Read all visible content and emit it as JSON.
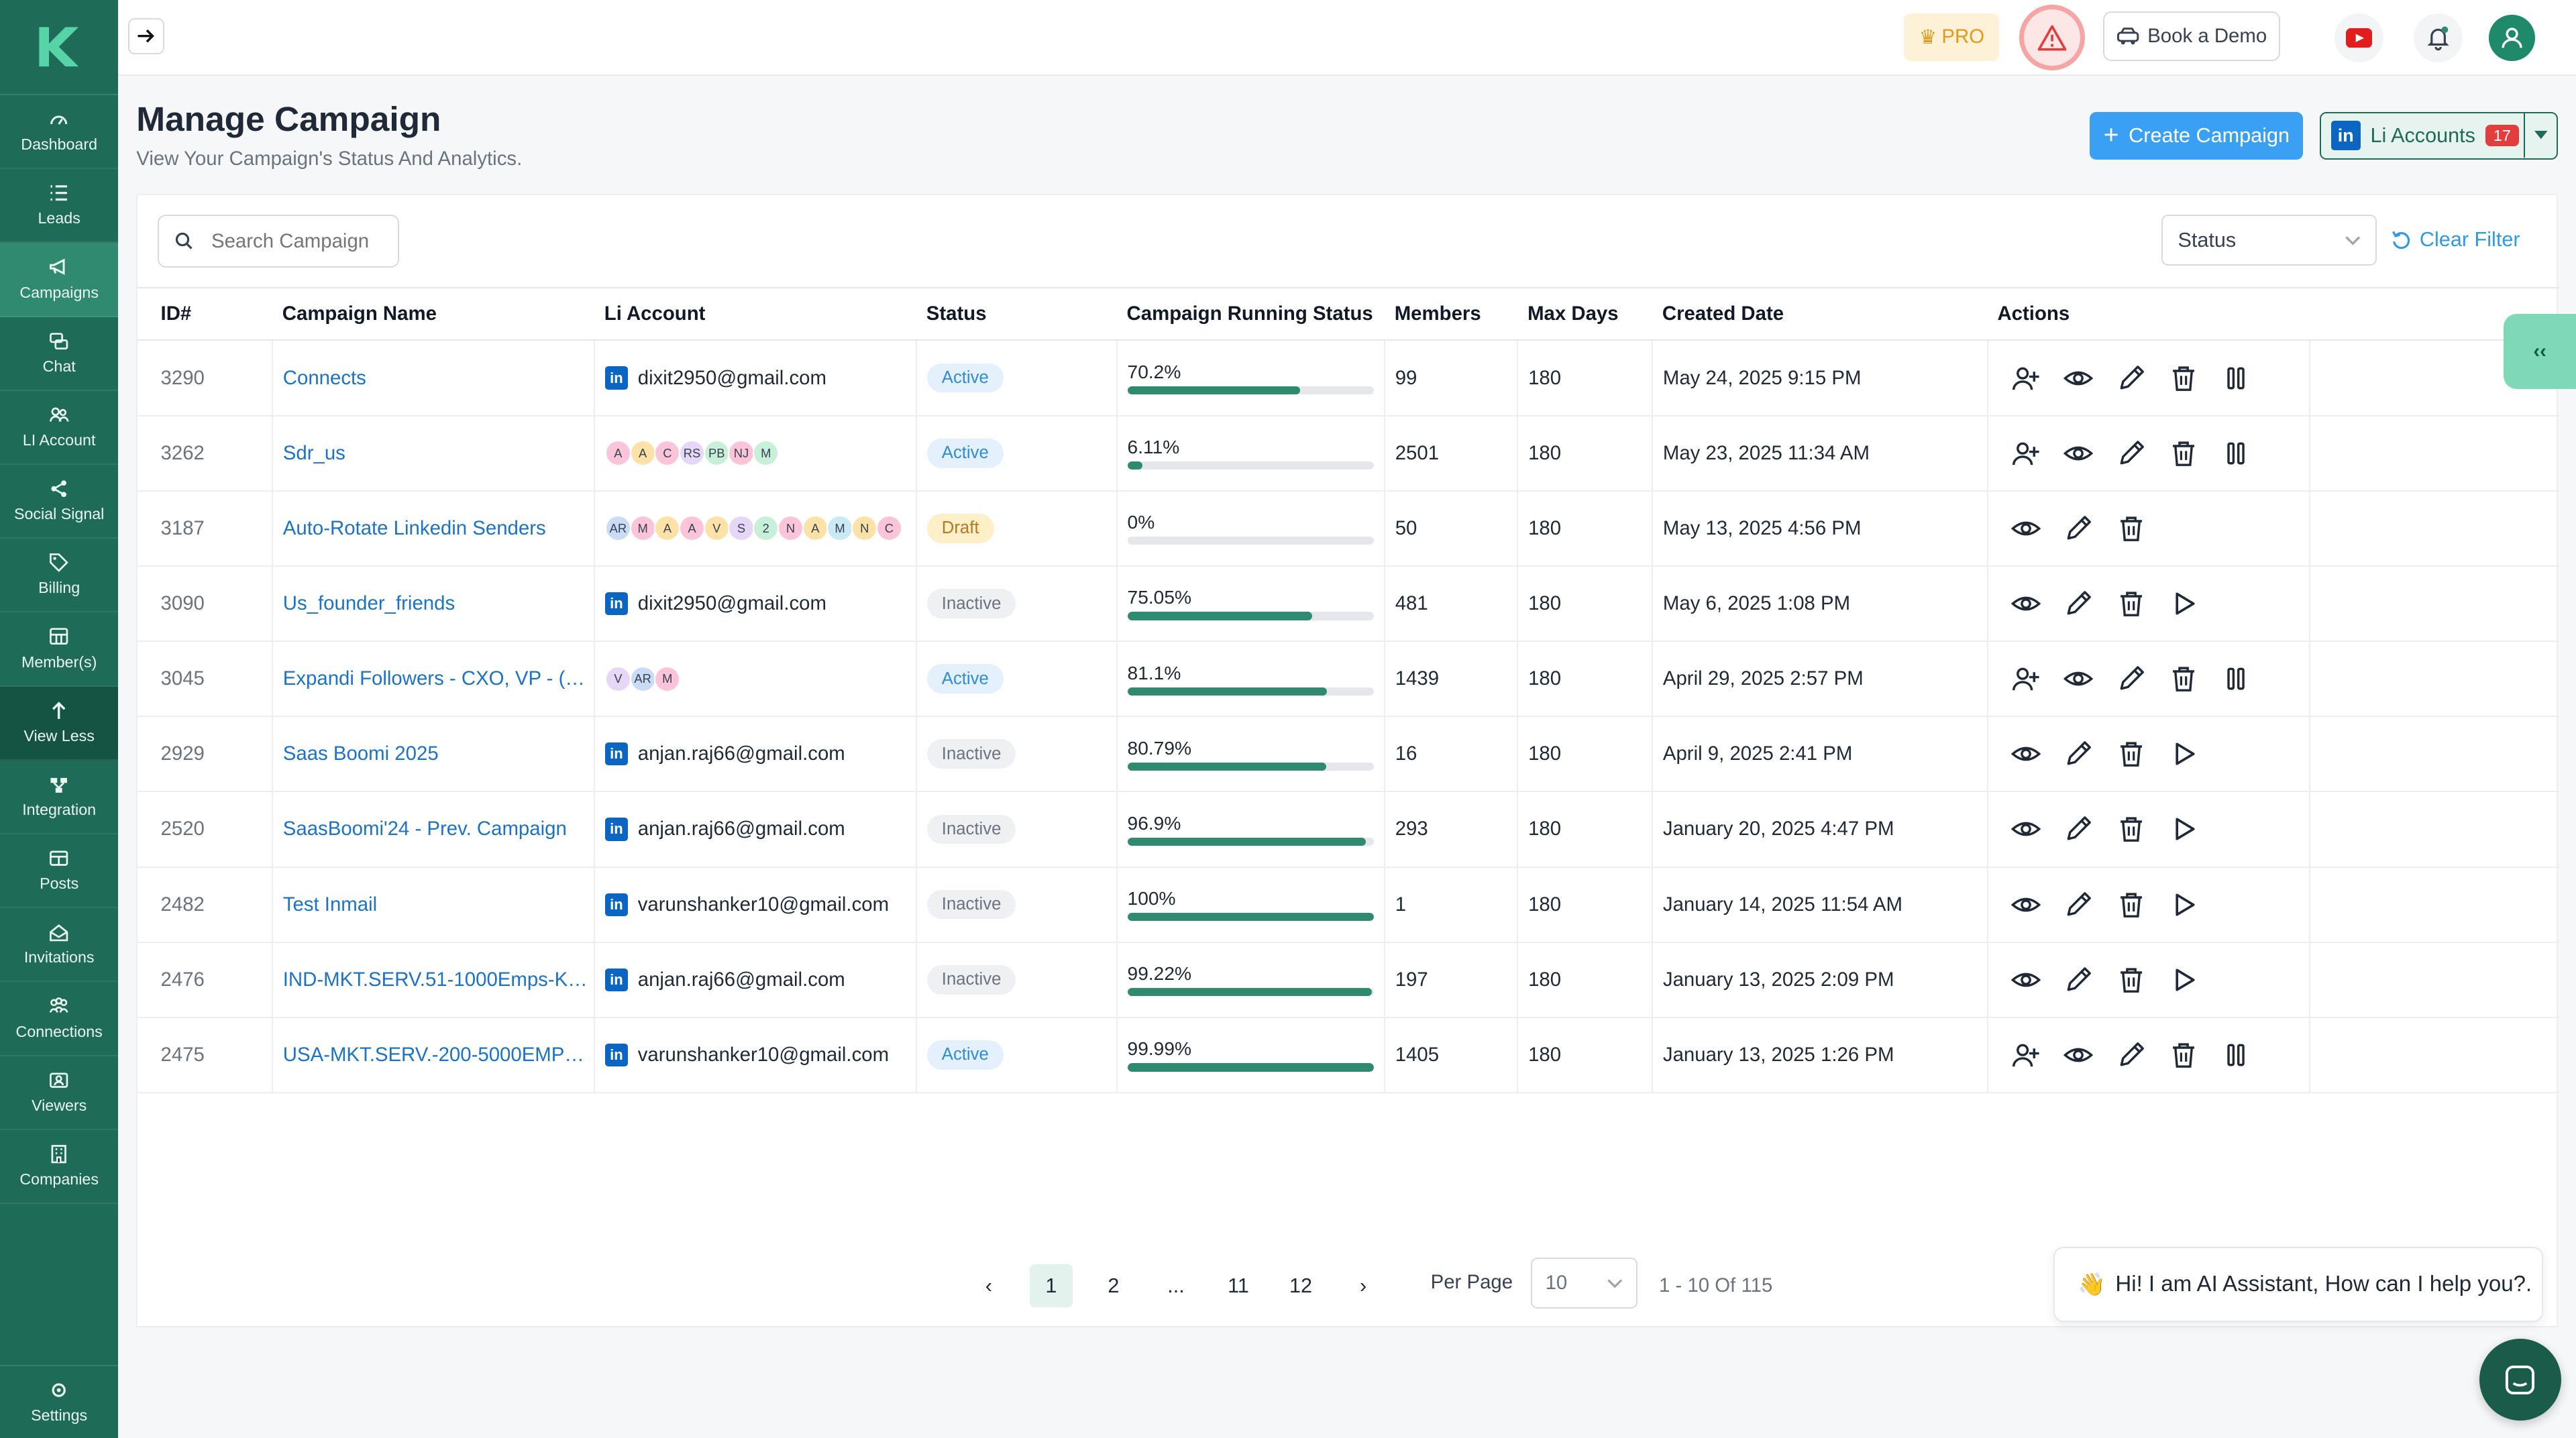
{
  "colors": {
    "sidebar_bg": "#1e6b57",
    "accent_blue": "#3aa0f3",
    "progress_green": "#2e8b70",
    "link_blue": "#1a73c8"
  },
  "sidebar": {
    "items": [
      {
        "label": "Dashboard",
        "icon": "gauge-icon"
      },
      {
        "label": "Leads",
        "icon": "list-icon"
      },
      {
        "label": "Campaigns",
        "icon": "megaphone-icon"
      },
      {
        "label": "Chat",
        "icon": "chat-icon"
      },
      {
        "label": "LI Account",
        "icon": "accounts-icon"
      },
      {
        "label": "Social Signal",
        "icon": "share-icon"
      },
      {
        "label": "Billing",
        "icon": "tag-icon"
      },
      {
        "label": "Member(s)",
        "icon": "members-icon"
      },
      {
        "label": "View Less",
        "icon": "arrow-up-icon"
      },
      {
        "label": "Integration",
        "icon": "integration-icon"
      },
      {
        "label": "Posts",
        "icon": "posts-icon"
      },
      {
        "label": "Invitations",
        "icon": "invitations-icon"
      },
      {
        "label": "Connections",
        "icon": "connections-icon"
      },
      {
        "label": "Viewers",
        "icon": "viewers-icon"
      },
      {
        "label": "Companies",
        "icon": "companies-icon"
      }
    ],
    "settings_label": "Settings"
  },
  "topbar": {
    "pro_label": "PRO",
    "demo_label": "Book a Demo"
  },
  "header": {
    "title": "Manage Campaign",
    "subtitle": "View Your Campaign's Status And Analytics.",
    "create_label": "Create Campaign",
    "li_accounts_label": "Li Accounts",
    "li_accounts_count": "17"
  },
  "filters": {
    "search_placeholder": "Search Campaign",
    "status_label": "Status",
    "clear_label": "Clear Filter"
  },
  "table": {
    "columns": [
      "ID#",
      "Campaign Name",
      "Li Account",
      "Status",
      "Campaign Running Status",
      "Members",
      "Max Days",
      "Created Date",
      "Actions"
    ],
    "rows": [
      {
        "id": "3290",
        "name": "Connects",
        "account": "dixit2950@gmail.com",
        "chips": [],
        "status": "Active",
        "progress_label": "70.2%",
        "progress": 70.2,
        "members": "99",
        "max_days": "180",
        "created": "May 24, 2025 9:15 PM",
        "actions": [
          "add-user",
          "view",
          "edit",
          "delete",
          "pause"
        ]
      },
      {
        "id": "3262",
        "name": "Sdr_us",
        "account": "",
        "chips": [
          {
            "t": "A",
            "c": "#fbc4d8"
          },
          {
            "t": "A",
            "c": "#fde2a7"
          },
          {
            "t": "C",
            "c": "#fbc4d8"
          },
          {
            "t": "RS",
            "c": "#e6d7f7"
          },
          {
            "t": "PB",
            "c": "#c8f0d8"
          },
          {
            "t": "NJ",
            "c": "#fbc4d8"
          },
          {
            "t": "M",
            "c": "#c8f0d8"
          }
        ],
        "status": "Active",
        "progress_label": "6.11%",
        "progress": 6.11,
        "members": "2501",
        "max_days": "180",
        "created": "May 23, 2025 11:34 AM",
        "actions": [
          "add-user",
          "view",
          "edit",
          "delete",
          "pause"
        ]
      },
      {
        "id": "3187",
        "name": "Auto-Rotate Linkedin Senders",
        "account": "",
        "chips": [
          {
            "t": "AR",
            "c": "#c9dbf5"
          },
          {
            "t": "M",
            "c": "#fbc4d8"
          },
          {
            "t": "A",
            "c": "#fde2a7"
          },
          {
            "t": "A",
            "c": "#fbc4d8"
          },
          {
            "t": "V",
            "c": "#fde2a7"
          },
          {
            "t": "S",
            "c": "#e6d7f7"
          },
          {
            "t": "2",
            "c": "#c8f0d8"
          },
          {
            "t": "N",
            "c": "#fbc4d8"
          },
          {
            "t": "A",
            "c": "#fde2a7"
          },
          {
            "t": "M",
            "c": "#c9e9f5"
          },
          {
            "t": "N",
            "c": "#fde2a7"
          },
          {
            "t": "C",
            "c": "#fbc4d8"
          }
        ],
        "status": "Draft",
        "progress_label": "0%",
        "progress": 0,
        "members": "50",
        "max_days": "180",
        "created": "May 13, 2025 4:56 PM",
        "actions": [
          "view",
          "edit",
          "delete"
        ]
      },
      {
        "id": "3090",
        "name": "Us_founder_friends",
        "account": "dixit2950@gmail.com",
        "chips": [],
        "status": "Inactive",
        "progress_label": "75.05%",
        "progress": 75.05,
        "members": "481",
        "max_days": "180",
        "created": "May 6, 2025 1:08 PM",
        "actions": [
          "view",
          "edit",
          "delete",
          "play"
        ]
      },
      {
        "id": "3045",
        "name": "Expandi Followers - CXO, VP - (Ex...",
        "account": "",
        "chips": [
          {
            "t": "V",
            "c": "#e6d7f7"
          },
          {
            "t": "AR",
            "c": "#c9dbf5"
          },
          {
            "t": "M",
            "c": "#fbc4d8"
          }
        ],
        "status": "Active",
        "progress_label": "81.1%",
        "progress": 81.1,
        "members": "1439",
        "max_days": "180",
        "created": "April 29, 2025 2:57 PM",
        "actions": [
          "add-user",
          "view",
          "edit",
          "delete",
          "pause"
        ]
      },
      {
        "id": "2929",
        "name": "Saas Boomi 2025",
        "account": "anjan.raj66@gmail.com",
        "chips": [],
        "status": "Inactive",
        "progress_label": "80.79%",
        "progress": 80.79,
        "members": "16",
        "max_days": "180",
        "created": "April 9, 2025 2:41 PM",
        "actions": [
          "view",
          "edit",
          "delete",
          "play"
        ]
      },
      {
        "id": "2520",
        "name": "SaasBoomi'24 - Prev. Campaign",
        "account": "anjan.raj66@gmail.com",
        "chips": [],
        "status": "Inactive",
        "progress_label": "96.9%",
        "progress": 96.9,
        "members": "293",
        "max_days": "180",
        "created": "January 20, 2025 4:47 PM",
        "actions": [
          "view",
          "edit",
          "delete",
          "play"
        ]
      },
      {
        "id": "2482",
        "name": "Test Inmail",
        "account": "varunshanker10@gmail.com",
        "chips": [],
        "status": "Inactive",
        "progress_label": "100%",
        "progress": 100,
        "members": "1",
        "max_days": "180",
        "created": "January 14, 2025 11:54 AM",
        "actions": [
          "view",
          "edit",
          "delete",
          "play"
        ]
      },
      {
        "id": "2476",
        "name": "IND-MKT.SERV.51-1000Emps-KW...",
        "account": "anjan.raj66@gmail.com",
        "chips": [],
        "status": "Inactive",
        "progress_label": "99.22%",
        "progress": 99.22,
        "members": "197",
        "max_days": "180",
        "created": "January 13, 2025 2:09 PM",
        "actions": [
          "view",
          "edit",
          "delete",
          "play"
        ]
      },
      {
        "id": "2475",
        "name": "USA-MKT.SERV.-200-5000EMPs-...",
        "account": "varunshanker10@gmail.com",
        "chips": [],
        "status": "Active",
        "progress_label": "99.99%",
        "progress": 99.99,
        "members": "1405",
        "max_days": "180",
        "created": "January 13, 2025 1:26 PM",
        "actions": [
          "add-user",
          "view",
          "edit",
          "delete",
          "pause"
        ]
      }
    ]
  },
  "pagination": {
    "prev": "‹",
    "pages": [
      "1",
      "2",
      "...",
      "11",
      "12"
    ],
    "current": "1",
    "next": "›",
    "per_page_label": "Per Page",
    "per_page_value": "10",
    "range_text": "1 - 10 Of 115"
  },
  "assistant": {
    "message": "Hi! I am AI Assistant, How can I help you?.",
    "emoji": "👋"
  },
  "side_toggle_label": "‹‹"
}
